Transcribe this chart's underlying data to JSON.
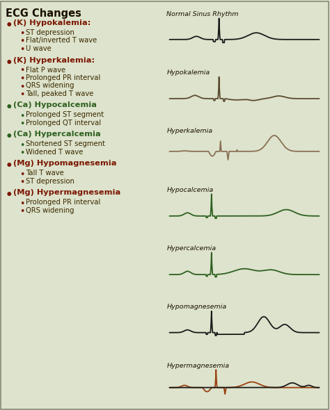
{
  "title": "ECG Changes",
  "background_color": "#dde3cc",
  "text_color_dark": "#1a1000",
  "bullet_red": "#7B1500",
  "bullet_green": "#2d6020",
  "text_red": "#7B1500",
  "text_green": "#2d6020",
  "sub_text_color": "#3a2800",
  "sections": [
    {
      "bullet_color": "#7B1500",
      "header": "(K) Hypokalemia:",
      "items": [
        "ST depression",
        "Flat/inverted T wave",
        "U wave"
      ]
    },
    {
      "bullet_color": "#7B1500",
      "header": "(K) Hyperkalemia:",
      "items": [
        "Flat P wave",
        "Prolonged PR interval",
        "QRS widening",
        "Tall, peaked T wave"
      ]
    },
    {
      "bullet_color": "#2d6020",
      "header": "(Ca) Hypocalcemia",
      "items": [
        "Prolonged ST segment",
        "Prolonged QT interval"
      ]
    },
    {
      "bullet_color": "#2d6020",
      "header": "(Ca) Hypercalcemia",
      "items": [
        "Shortened ST segment",
        "Widened T wave"
      ]
    },
    {
      "bullet_color": "#7B1500",
      "header": "(Mg) Hypomagnesemia",
      "items": [
        "Tall T wave",
        "ST depression"
      ]
    },
    {
      "bullet_color": "#7B1500",
      "header": "(Mg) Hypermagnesemia",
      "items": [
        "Prolonged PR interval",
        "QRS widening"
      ]
    }
  ],
  "ecg_labels": [
    "Normal Sinus Rhythm",
    "Hypokalemia",
    "Hyperkalemia",
    "Hypocalcemia",
    "Hypercalcemia",
    "Hypomagnesemia",
    "Hypermagnesemia"
  ],
  "ecg_colors": [
    "#1a1a1a",
    "#5a4a30",
    "#8a7055",
    "#2d6020",
    "#2d6020",
    "#1a1a1a",
    "#9a4010"
  ],
  "ecg_colors_orange": "#9a4010",
  "ecg_colors_black": "#1a1a1a",
  "figsize": [
    4.74,
    5.9
  ],
  "dpi": 100
}
